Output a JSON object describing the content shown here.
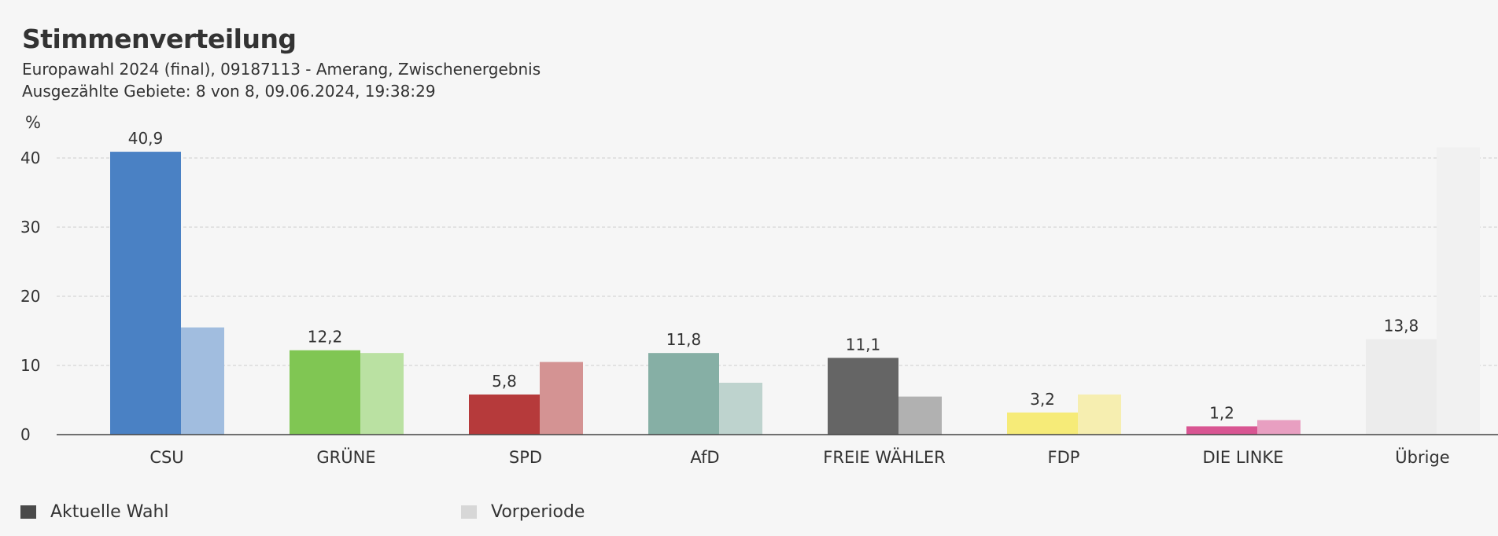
{
  "chart_data": {
    "type": "bar",
    "title": "Stimmenverteilung",
    "subtitle_line1": "Europawahl 2024 (final), 09187113 - Amerang, Zwischenergebnis",
    "subtitle_line2": "Ausgezählte Gebiete: 8 von 8, 09.06.2024, 19:38:29",
    "ylabel": "%",
    "ylim": [
      0,
      42
    ],
    "yticks": [
      0,
      10,
      20,
      30,
      40
    ],
    "grid": true,
    "categories": [
      "CSU",
      "GRÜNE",
      "SPD",
      "AfD",
      "FREIE WÄHLER",
      "FDP",
      "DIE LINKE",
      "Übrige"
    ],
    "series": [
      {
        "name": "Aktuelle Wahl",
        "values": [
          40.9,
          12.2,
          5.8,
          11.8,
          11.1,
          3.2,
          1.2,
          13.8
        ],
        "labels": [
          "40,9",
          "12,2",
          "5,8",
          "11,8",
          "11,1",
          "3,2",
          "1,2",
          "13,8"
        ],
        "colors": [
          "#4a81c4",
          "#80c653",
          "#b63a3b",
          "#86afa5",
          "#656565",
          "#f6eb78",
          "#d85592",
          "#ececec"
        ]
      },
      {
        "name": "Vorperiode",
        "values": [
          15.5,
          11.8,
          10.5,
          7.5,
          5.5,
          5.8,
          2.1,
          41.5
        ],
        "colors": [
          "#a1bddf",
          "#bae1a2",
          "#d49393",
          "#bed3ce",
          "#b1b1b1",
          "#f6eeb0",
          "#e89fc1",
          "#f1f1f1"
        ]
      }
    ],
    "legend": [
      {
        "label": "Aktuelle Wahl",
        "color": "#4a4a4a"
      },
      {
        "label": "Vorperiode",
        "color": "#d7d7d7"
      }
    ],
    "legend_position": "bottom-left"
  }
}
